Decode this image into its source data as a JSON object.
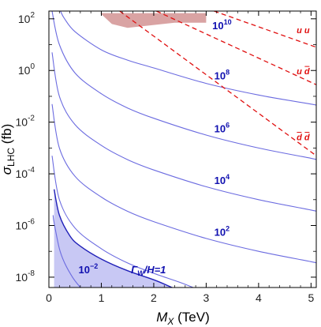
{
  "chart_data": {
    "type": "line",
    "xlabel_main": "M",
    "xlabel_sub": "X",
    "xlabel_unit": " (TeV)",
    "ylabel_main": "σ",
    "ylabel_sub": "LHC",
    "ylabel_unit": " (fb)",
    "xlim": [
      0,
      5.1
    ],
    "ylog": true,
    "ylim_exp": [
      -8.4,
      2.3
    ],
    "x_ticks": [
      {
        "v": 0,
        "label": "0"
      },
      {
        "v": 1,
        "label": "1"
      },
      {
        "v": 2,
        "label": "2"
      },
      {
        "v": 3,
        "label": "3"
      },
      {
        "v": 4,
        "label": "4"
      },
      {
        "v": 5,
        "label": "5"
      }
    ],
    "y_ticks": [
      {
        "exp": 2,
        "label": "10",
        "sup": "2"
      },
      {
        "exp": 0,
        "label": "10",
        "sup": "0"
      },
      {
        "exp": -2,
        "label": "10",
        "sup": "-2"
      },
      {
        "exp": -4,
        "label": "10",
        "sup": "-4"
      },
      {
        "exp": -6,
        "label": "10",
        "sup": "-6"
      },
      {
        "exp": -8,
        "label": "10",
        "sup": "-8"
      }
    ],
    "colors": {
      "width_curves": "#6b6be0",
      "label_blue": "#1010b0",
      "lhc_lines": "#e01010",
      "shaded_region": "#c8c8f4",
      "excluded_region": "#d9a3a3"
    },
    "series": [
      {
        "name": "10^10",
        "label": "10",
        "sup": "10",
        "label_at": [
          3.3,
          1.6
        ],
        "points": [
          [
            0.22,
            2.3
          ],
          [
            0.3,
            2.0
          ],
          [
            0.5,
            1.5
          ],
          [
            1.0,
            0.8
          ],
          [
            1.5,
            0.4
          ],
          [
            2.0,
            0.1
          ],
          [
            3.0,
            -0.5
          ],
          [
            4.0,
            -0.95
          ],
          [
            5.0,
            -1.3
          ],
          [
            5.1,
            -1.35
          ]
        ]
      },
      {
        "name": "10^8",
        "label": "10",
        "sup": "8",
        "label_at": [
          3.3,
          -0.35
        ],
        "points": [
          [
            0.06,
            2.3
          ],
          [
            0.2,
            1.0
          ],
          [
            0.5,
            -0.1
          ],
          [
            1.0,
            -0.9
          ],
          [
            1.5,
            -1.45
          ],
          [
            2.0,
            -1.85
          ],
          [
            3.0,
            -2.5
          ],
          [
            4.0,
            -3.0
          ],
          [
            5.0,
            -3.4
          ],
          [
            5.1,
            -3.45
          ]
        ]
      },
      {
        "name": "10^6",
        "label": "10",
        "sup": "6",
        "label_at": [
          3.3,
          -2.4
        ],
        "points": [
          [
            0.06,
            0.7
          ],
          [
            0.2,
            -1.0
          ],
          [
            0.5,
            -2.1
          ],
          [
            1.0,
            -2.9
          ],
          [
            1.5,
            -3.45
          ],
          [
            2.0,
            -3.85
          ],
          [
            3.0,
            -4.5
          ],
          [
            4.0,
            -5.0
          ],
          [
            5.0,
            -5.4
          ],
          [
            5.1,
            -5.45
          ]
        ]
      },
      {
        "name": "10^4",
        "label": "10",
        "sup": "4",
        "label_at": [
          3.3,
          -4.4
        ],
        "points": [
          [
            0.06,
            -1.3
          ],
          [
            0.2,
            -3.0
          ],
          [
            0.5,
            -4.1
          ],
          [
            1.0,
            -4.9
          ],
          [
            1.5,
            -5.45
          ],
          [
            2.0,
            -5.85
          ],
          [
            3.0,
            -6.5
          ],
          [
            4.0,
            -7.0
          ],
          [
            5.0,
            -7.4
          ],
          [
            5.1,
            -7.45
          ]
        ]
      },
      {
        "name": "10^2",
        "label": "10",
        "sup": "2",
        "label_at": [
          3.3,
          -6.4
        ],
        "points": [
          [
            0.06,
            -3.3
          ],
          [
            0.2,
            -5.0
          ],
          [
            0.5,
            -6.1
          ],
          [
            1.0,
            -6.9
          ],
          [
            1.5,
            -7.45
          ],
          [
            2.0,
            -7.85
          ],
          [
            2.5,
            -8.2
          ],
          [
            2.75,
            -8.4
          ]
        ]
      },
      {
        "name": "10^-2",
        "label": "10",
        "sup": "−2",
        "label_at": [
          0.75,
          -7.85
        ],
        "points": [
          [
            0.08,
            -5.6
          ],
          [
            0.1,
            -5.9
          ],
          [
            0.2,
            -6.9
          ],
          [
            0.3,
            -7.45
          ],
          [
            0.45,
            -8.0
          ],
          [
            0.6,
            -8.4
          ]
        ]
      }
    ],
    "boundary": {
      "name": "Γ_W/H=1",
      "label_main": "Γ",
      "label_sub": "W",
      "label_rest": "/H=1",
      "label_at": [
        1.9,
        -7.85
      ],
      "points": [
        [
          0.1,
          -4.6
        ],
        [
          0.2,
          -5.6
        ],
        [
          0.4,
          -6.4
        ],
        [
          0.6,
          -6.8
        ],
        [
          1.0,
          -7.3
        ],
        [
          1.5,
          -7.75
        ],
        [
          2.0,
          -8.1
        ],
        [
          2.35,
          -8.4
        ]
      ]
    },
    "lhc_series": [
      {
        "name": "uu",
        "label": "u u",
        "bar": false,
        "label_at": [
          4.85,
          1.45
        ],
        "points": [
          [
            3.15,
            2.3
          ],
          [
            5.1,
            0.9
          ]
        ]
      },
      {
        "name": "uū",
        "label": "u d",
        "bar": "second",
        "label_at": [
          4.85,
          -0.15
        ],
        "points": [
          [
            2.05,
            2.3
          ],
          [
            5.1,
            -0.55
          ]
        ]
      },
      {
        "name": "ūd̄",
        "label": "d d",
        "bar": "both",
        "label_at": [
          4.85,
          -2.7
        ],
        "points": [
          [
            1.35,
            2.3
          ],
          [
            5.1,
            -3.3
          ]
        ]
      }
    ],
    "excluded_region": {
      "points": [
        [
          0.98,
          2.22
        ],
        [
          3.0,
          2.22
        ],
        [
          3.0,
          1.85
        ],
        [
          2.4,
          1.85
        ],
        [
          1.95,
          1.75
        ],
        [
          1.5,
          1.65
        ],
        [
          1.2,
          1.8
        ],
        [
          0.98,
          2.22
        ]
      ]
    }
  }
}
